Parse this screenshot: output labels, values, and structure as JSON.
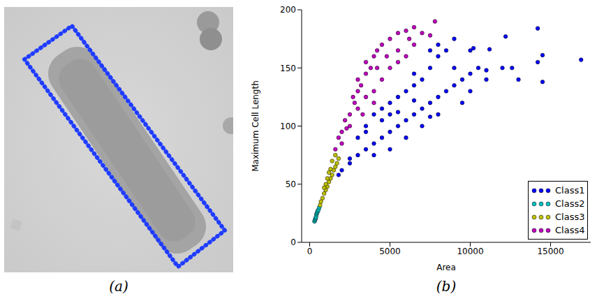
{
  "chart_data": {
    "type": "scatter",
    "title": "(b)",
    "x_label": "Area",
    "y_label": "Maximum Cell Length",
    "xlim": [
      -500,
      17500
    ],
    "xticks": [
      0,
      5000,
      10000,
      15000
    ],
    "ylim": [
      0,
      200
    ],
    "yticks": [
      0,
      50,
      100,
      150,
      200
    ],
    "legend": "lower right",
    "marker": "circle",
    "series": [
      {
        "name": "Class1",
        "color": "#0000ff",
        "x": [
          1800,
          2000,
          2500,
          3000,
          3500,
          4000,
          4500,
          5000,
          5500,
          6000,
          6500,
          7000,
          7500,
          8000,
          8500,
          9000,
          9500,
          10000,
          10500,
          11000,
          12000,
          13000,
          14200,
          14500,
          14500,
          14200,
          12200,
          16900,
          3000,
          3500,
          4000,
          4500,
          5000,
          5500,
          6000,
          6500,
          7000,
          7500,
          8000,
          8500,
          9000,
          10000,
          10200,
          11000,
          9500,
          8000,
          7000,
          6000,
          5000,
          4000,
          2500,
          3500,
          4500,
          5500,
          6500,
          7500,
          8000,
          7500,
          9000,
          10000,
          12600,
          11200,
          6500,
          5000
        ],
        "values": [
          58,
          62,
          68,
          75,
          80,
          85,
          90,
          95,
          100,
          105,
          110,
          115,
          120,
          125,
          130,
          135,
          140,
          145,
          150,
          148,
          150,
          140,
          155,
          138,
          161,
          184,
          177,
          157,
          90,
          100,
          110,
          115,
          120,
          125,
          130,
          135,
          140,
          150,
          160,
          165,
          175,
          165,
          167,
          140,
          120,
          110,
          100,
          90,
          80,
          75,
          72,
          95,
          105,
          112,
          122,
          108,
          170,
          165,
          150,
          130,
          150,
          166,
          145,
          110
        ]
      },
      {
        "name": "Class2",
        "color": "#00bfbf",
        "x": [
          300,
          330,
          350,
          380,
          400,
          420,
          450,
          480,
          500,
          550,
          600
        ],
        "values": [
          18,
          19,
          20,
          21,
          22,
          24,
          25,
          26,
          27,
          28,
          30
        ]
      },
      {
        "name": "Class3",
        "color": "#bfbf00",
        "x": [
          650,
          700,
          800,
          900,
          1000,
          1100,
          1200,
          1300,
          1400,
          1500,
          1600,
          1700,
          1200,
          1400,
          1100,
          900,
          1600,
          1800,
          1000,
          1300
        ],
        "values": [
          32,
          35,
          38,
          42,
          45,
          48,
          52,
          55,
          58,
          62,
          65,
          68,
          60,
          70,
          55,
          47,
          75,
          72,
          50,
          63
        ]
      },
      {
        "name": "Class4",
        "color": "#bf00bf",
        "x": [
          1600,
          1800,
          2000,
          2200,
          2500,
          2800,
          3000,
          3200,
          3500,
          3800,
          4000,
          4200,
          4500,
          5000,
          5500,
          6000,
          6500,
          7000,
          7500,
          7800,
          2500,
          3000,
          3500,
          4000,
          4500,
          5000,
          5500,
          6000,
          6500,
          3000,
          3500,
          4200,
          4800,
          2000,
          2700,
          5500,
          6200,
          3300,
          4000,
          2300
        ],
        "values": [
          80,
          90,
          95,
          105,
          110,
          120,
          130,
          135,
          145,
          150,
          160,
          165,
          170,
          175,
          180,
          182,
          185,
          180,
          178,
          190,
          100,
          115,
          125,
          130,
          140,
          150,
          155,
          160,
          170,
          140,
          155,
          150,
          160,
          85,
          125,
          165,
          175,
          110,
          120,
          98
        ]
      }
    ]
  },
  "image": {
    "caption": "(a)"
  }
}
